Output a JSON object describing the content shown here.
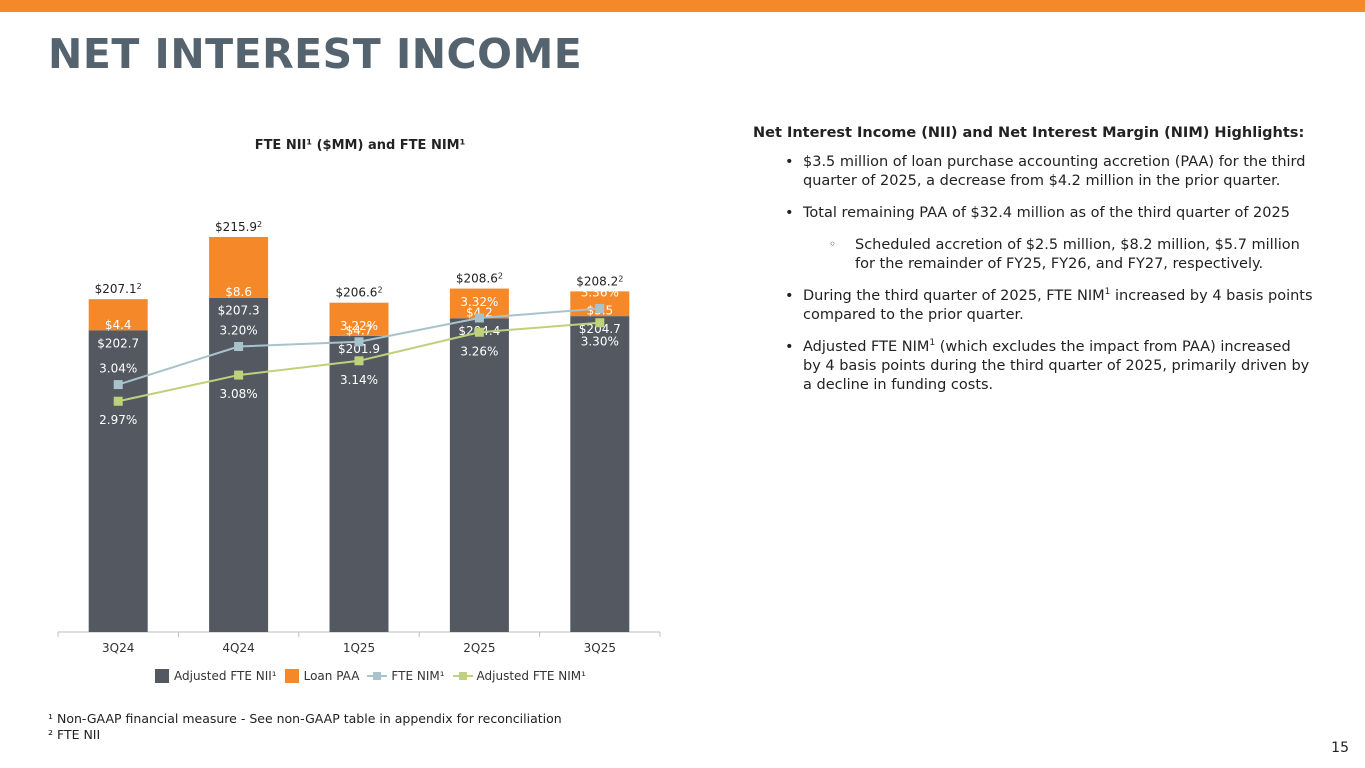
{
  "page": {
    "title": "NET INTEREST INCOME",
    "page_number": "15",
    "colors": {
      "accent": "#f5892a",
      "title": "#54636d",
      "bar_dark": "#545860",
      "bar_orange": "#f5892a",
      "fte_nim": "#a9c3cc",
      "adj_nim": "#bdd27a"
    }
  },
  "chart_data": {
    "type": "bar",
    "title": "FTE NII¹ ($MM) and FTE NIM¹",
    "categories": [
      "3Q24",
      "4Q24",
      "1Q25",
      "2Q25",
      "3Q25"
    ],
    "stacked": true,
    "series": [
      {
        "name": "Adjusted FTE NII¹",
        "kind": "bar",
        "values": [
          202.7,
          207.3,
          201.9,
          204.4,
          204.7
        ],
        "labels": [
          "$202.7",
          "$207.3",
          "$201.9",
          "$204.4",
          "$204.7"
        ]
      },
      {
        "name": "Loan PAA",
        "kind": "bar",
        "values": [
          4.4,
          8.6,
          4.7,
          4.2,
          3.5
        ],
        "labels": [
          "$4.4",
          "$8.6",
          "$4.7",
          "$4.2",
          "$3.5"
        ]
      },
      {
        "name": "FTE NIM¹",
        "kind": "line",
        "values": [
          3.04,
          3.2,
          3.22,
          3.32,
          3.36
        ],
        "labels": [
          "3.04%",
          "3.20%",
          "3.22%",
          "3.32%",
          "3.36%"
        ]
      },
      {
        "name": "Adjusted FTE NIM¹",
        "kind": "line",
        "values": [
          2.97,
          3.08,
          3.14,
          3.26,
          3.3
        ],
        "labels": [
          "2.97%",
          "3.08%",
          "3.14%",
          "3.26%",
          "3.30%"
        ]
      }
    ],
    "totals": [
      207.1,
      215.9,
      206.6,
      208.6,
      208.2
    ],
    "total_labels": [
      "$207.1",
      "$215.9",
      "$206.6",
      "$208.6",
      "$208.2"
    ],
    "total_superscript": "2",
    "ylim_bar": [
      160,
      220
    ],
    "ylim_line": [
      2.0,
      3.9
    ],
    "grid": false,
    "legend": "bottom"
  },
  "highlights": {
    "title": "Net Interest Income (NII) and Net Interest Margin (NIM) Highlights:",
    "bullet_glyph": "•",
    "sub_glyph": "◦",
    "b1": "$3.5 million of loan purchase accounting accretion (PAA) for the third quarter of 2025, a decrease from $4.2 million in the prior quarter.",
    "b2": "Total remaining PAA of $32.4 million as of the third quarter of 2025",
    "b2_sub": "Scheduled accretion of $2.5 million, $8.2 million, $5.7 million for the remainder of FY25, FY26, and FY27, respectively.",
    "b3_pre": "During the third quarter of 2025, FTE NIM",
    "b3_sup": "1",
    "b3_post": " increased by 4 basis points compared to the prior quarter.",
    "b4_pre": "Adjusted FTE NIM",
    "b4_sup": "1",
    "b4_post": " (which excludes the impact from PAA) increased by 4 basis points during the third quarter of 2025, primarily driven by a decline in funding costs."
  },
  "footnotes": {
    "f1": "¹ Non-GAAP financial measure - See non-GAAP table in appendix for reconciliation",
    "f2": "² FTE NII"
  }
}
